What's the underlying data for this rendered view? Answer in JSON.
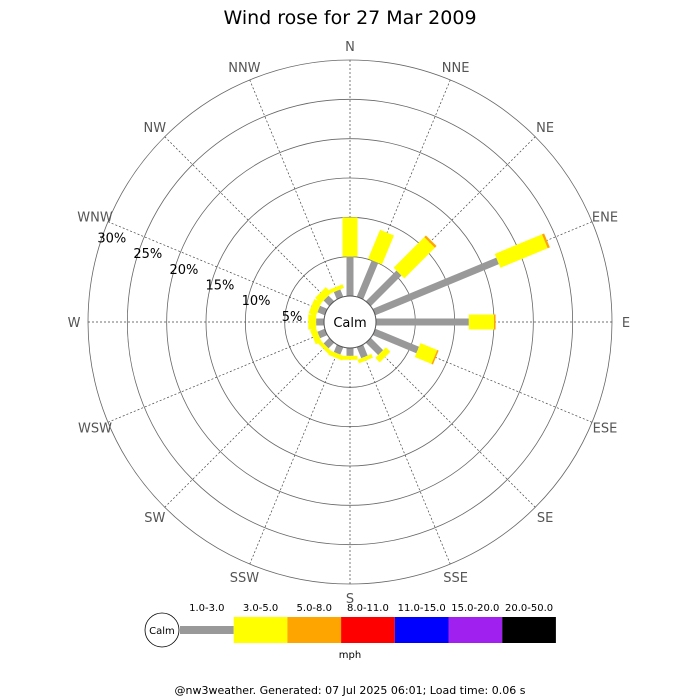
{
  "footer": "@nw3weather. Generated: 07 Jul 2025 06:01; Load time: 0.06 s",
  "chart_data": {
    "type": "wind-rose",
    "title": "Wind rose for 27 Mar 2009",
    "calm_label": "Calm",
    "unit": "mph",
    "directions": [
      "N",
      "NNE",
      "NE",
      "ENE",
      "E",
      "ESE",
      "SE",
      "SSE",
      "S",
      "SSW",
      "SW",
      "WSW",
      "W",
      "WNW",
      "NW",
      "NNW"
    ],
    "rings": [
      5,
      10,
      15,
      20,
      25,
      30
    ],
    "ring_labels": [
      "5%",
      "10%",
      "15%",
      "20%",
      "25%",
      "30%"
    ],
    "rmax": 30,
    "calm_percent": 1,
    "speed_bins": [
      {
        "label": "1.0-3.0",
        "color": "#999999"
      },
      {
        "label": "3.0-5.0",
        "color": "#ffff00"
      },
      {
        "label": "5.0-8.0",
        "color": "#ffa500"
      },
      {
        "label": "8.0-11.0",
        "color": "#ff0000"
      },
      {
        "label": "11.0-15.0",
        "color": "#0000ff"
      },
      {
        "label": "15.0-20.0",
        "color": "#a020f0"
      },
      {
        "label": "20.0-50.0",
        "color": "#000000"
      }
    ],
    "cumulative_percent": [
      {
        "direction": "N",
        "values": [
          5.0,
          10.0,
          10.0
        ]
      },
      {
        "direction": "NNE",
        "values": [
          5.0,
          9.0,
          9.0
        ]
      },
      {
        "direction": "NE",
        "values": [
          5.5,
          11.0,
          11.3
        ]
      },
      {
        "direction": "ENE",
        "values": [
          17.0,
          23.5,
          23.8
        ]
      },
      {
        "direction": "E",
        "values": [
          11.8,
          15.0,
          15.2
        ]
      },
      {
        "direction": "ESE",
        "values": [
          6.0,
          8.3,
          8.5
        ]
      },
      {
        "direction": "SE",
        "values": [
          2.2,
          3.0
        ]
      },
      {
        "direction": "SSE",
        "values": [
          1.5,
          2.0
        ]
      },
      {
        "direction": "S",
        "values": [
          1.0,
          1.5
        ]
      },
      {
        "direction": "SSW",
        "values": [
          1.0,
          1.6
        ]
      },
      {
        "direction": "SW",
        "values": [
          1.0,
          1.5
        ]
      },
      {
        "direction": "WSW",
        "values": [
          1.0,
          1.8
        ]
      },
      {
        "direction": "W",
        "values": [
          1.0,
          2.0
        ]
      },
      {
        "direction": "WNW",
        "values": [
          1.0,
          2.0
        ]
      },
      {
        "direction": "NW",
        "values": [
          1.0,
          2.0
        ]
      },
      {
        "direction": "NNW",
        "values": [
          1.0,
          1.5
        ]
      }
    ]
  }
}
